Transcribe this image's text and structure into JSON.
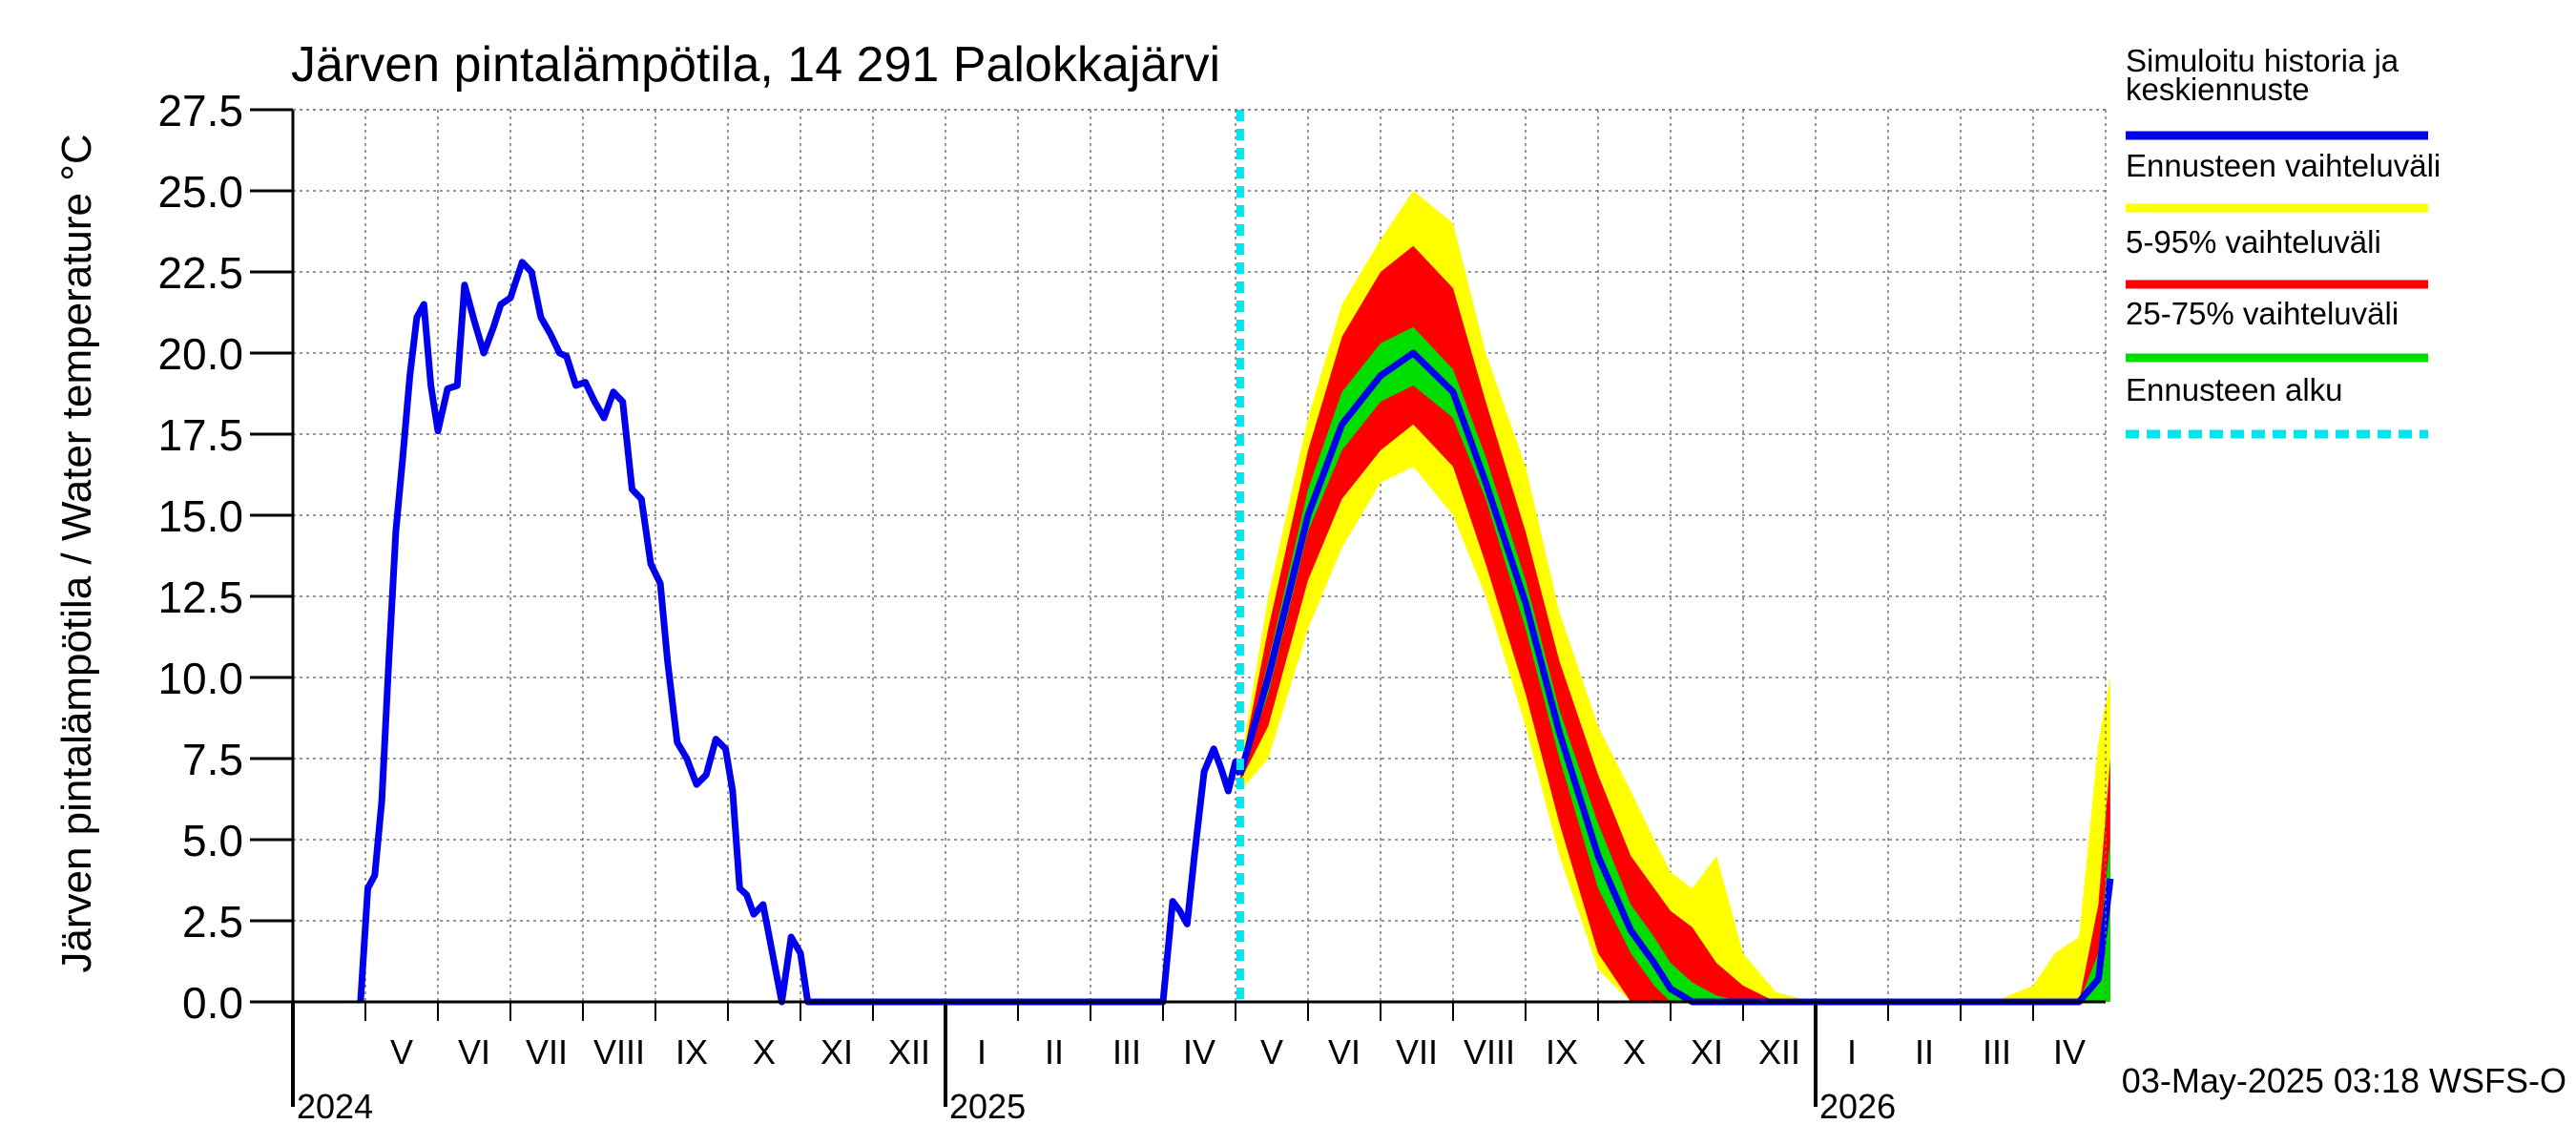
{
  "chart_data": {
    "type": "area",
    "title": "Järven pintalämpötila, 14 291 Palokkajärvi",
    "ylabel": "Järven pintalämpötila / Water temperature °C",
    "xlabel": "",
    "ylim": [
      0,
      27.5
    ],
    "yticks": [
      "0.0",
      "2.5",
      "5.0",
      "7.5",
      "10.0",
      "12.5",
      "15.0",
      "17.5",
      "20.0",
      "22.5",
      "25.0",
      "27.5"
    ],
    "x_axis": {
      "unit": "months",
      "start": "2024-04-01",
      "months": [
        "V",
        "VI",
        "VII",
        "VIII",
        "IX",
        "X",
        "XI",
        "XII",
        "I",
        "II",
        "III",
        "IV",
        "V",
        "VI",
        "VII",
        "VIII",
        "IX",
        "X",
        "XI",
        "XII",
        "I",
        "II",
        "III",
        "IV"
      ],
      "years": [
        "2024",
        "2025",
        "2026"
      ]
    },
    "grid": true,
    "legend_position": "right",
    "legend": [
      {
        "label": "Simuloitu historia ja keskiennuste",
        "color": "#0000ee",
        "style": "solid"
      },
      {
        "label": "Ennusteen vaihteluväli",
        "color": "#ffff00",
        "style": "solid"
      },
      {
        "label": "5-95% vaihteluväli",
        "color": "#ff0000",
        "style": "solid"
      },
      {
        "label": "25-75% vaihteluväli",
        "color": "#00dd00",
        "style": "solid"
      },
      {
        "label": "Ennusteen alku",
        "color": "#00e5ee",
        "style": "dashed"
      }
    ],
    "forecast_start": "2025-05-03",
    "history": {
      "name": "Simuloitu historia",
      "x": [
        "2024-04-29",
        "2024-05-02",
        "2024-05-05",
        "2024-05-08",
        "2024-05-11",
        "2024-05-14",
        "2024-05-17",
        "2024-05-20",
        "2024-05-23",
        "2024-05-26",
        "2024-05-29",
        "2024-06-01",
        "2024-06-05",
        "2024-06-09",
        "2024-06-12",
        "2024-06-16",
        "2024-06-20",
        "2024-06-24",
        "2024-06-27",
        "2024-07-01",
        "2024-07-06",
        "2024-07-10",
        "2024-07-14",
        "2024-07-18",
        "2024-07-22",
        "2024-07-25",
        "2024-07-29",
        "2024-08-02",
        "2024-08-06",
        "2024-08-10",
        "2024-08-14",
        "2024-08-18",
        "2024-08-22",
        "2024-08-26",
        "2024-08-30",
        "2024-09-03",
        "2024-09-06",
        "2024-09-10",
        "2024-09-14",
        "2024-09-18",
        "2024-09-22",
        "2024-09-26",
        "2024-09-30",
        "2024-10-03",
        "2024-10-06",
        "2024-10-09",
        "2024-10-12",
        "2024-10-16",
        "2024-10-20",
        "2024-10-24",
        "2024-10-28",
        "2024-11-01",
        "2024-11-04",
        "2024-11-07",
        "2024-11-10",
        "2024-11-13",
        "2024-11-16",
        "2024-11-19",
        "2024-11-22",
        "2024-11-25",
        "2024-11-28",
        "2024-12-01",
        "2024-12-05",
        "2024-12-10",
        "2024-12-15",
        "2024-12-20",
        "2024-12-24",
        "2024-12-28",
        "2025-01-05",
        "2025-02-01",
        "2025-03-01",
        "2025-04-01",
        "2025-04-05",
        "2025-04-08",
        "2025-04-11",
        "2025-04-14",
        "2025-04-18",
        "2025-04-22",
        "2025-04-25",
        "2025-04-28",
        "2025-05-01",
        "2025-05-03"
      ],
      "y": [
        0.0,
        3.5,
        3.9,
        6.2,
        10.5,
        14.5,
        16.8,
        19.3,
        21.1,
        21.5,
        19.0,
        17.6,
        18.9,
        19.0,
        22.1,
        21.0,
        20.0,
        20.8,
        21.5,
        21.7,
        22.8,
        22.5,
        21.1,
        20.6,
        20.0,
        19.9,
        19.0,
        19.1,
        18.5,
        18.0,
        18.8,
        18.5,
        15.8,
        15.5,
        13.5,
        12.9,
        10.5,
        8.0,
        7.5,
        6.7,
        7.0,
        8.1,
        7.8,
        6.5,
        3.5,
        3.3,
        2.7,
        3.0,
        1.5,
        0.0,
        2.0,
        1.5,
        0.0,
        0.0,
        0.0,
        0.0,
        0.0,
        0.0,
        0.0,
        0.0,
        0.0,
        0.0,
        0.0,
        0.0,
        0.0,
        0.0,
        0.0,
        0.0,
        0.0,
        0.0,
        0.0,
        0.0,
        3.1,
        2.8,
        2.4,
        4.5,
        7.1,
        7.8,
        7.2,
        6.5,
        7.4,
        7.0
      ]
    },
    "forecast": {
      "x": [
        "2025-05-03",
        "2025-05-15",
        "2025-06-01",
        "2025-06-15",
        "2025-07-01",
        "2025-07-15",
        "2025-08-01",
        "2025-08-15",
        "2025-09-01",
        "2025-09-15",
        "2025-10-01",
        "2025-10-15",
        "2025-10-25",
        "2025-11-01",
        "2025-11-10",
        "2025-11-20",
        "2025-12-01",
        "2025-12-15",
        "2025-12-31",
        "2026-01-15",
        "2026-02-15",
        "2026-03-15",
        "2026-04-01",
        "2026-04-10",
        "2026-04-20",
        "2026-04-28",
        "2026-05-03"
      ],
      "series": [
        {
          "name": "Ennusteen vaihteluväli",
          "band": "outer",
          "low": [
            6.5,
            7.5,
            11.5,
            14.0,
            16.0,
            16.5,
            15.0,
            12.5,
            8.5,
            4.5,
            1.0,
            0.0,
            0.0,
            0.0,
            0.0,
            0.0,
            0.0,
            0.0,
            0.0,
            0.0,
            0.0,
            0.0,
            0.0,
            0.0,
            0.0,
            0.0,
            0.0
          ],
          "high": [
            7.3,
            12.5,
            18.0,
            21.5,
            23.5,
            25.0,
            24.0,
            20.0,
            16.5,
            12.0,
            8.5,
            6.5,
            5.0,
            4.0,
            3.5,
            4.5,
            1.5,
            0.3,
            0.0,
            0.0,
            0.0,
            0.0,
            0.5,
            1.5,
            2.0,
            8.0,
            10.0
          ]
        },
        {
          "name": "5-95% vaihteluväli",
          "band": "p5_95",
          "low": [
            6.8,
            8.5,
            13.0,
            15.5,
            17.0,
            17.8,
            16.5,
            13.5,
            9.5,
            5.5,
            1.5,
            0.0,
            0.0,
            0.0,
            0.0,
            0.0,
            0.0,
            0.0,
            0.0,
            0.0,
            0.0,
            0.0,
            0.0,
            0.0,
            0.0,
            0.0,
            0.0
          ],
          "high": [
            7.1,
            11.5,
            17.0,
            20.5,
            22.5,
            23.3,
            22.0,
            18.5,
            14.5,
            10.5,
            7.0,
            4.5,
            3.5,
            2.8,
            2.3,
            1.2,
            0.5,
            0.0,
            0.0,
            0.0,
            0.0,
            0.0,
            0.0,
            0.0,
            0.0,
            3.0,
            7.5
          ]
        },
        {
          "name": "25-75% vaihteluväli",
          "band": "p25_75",
          "low": [
            6.9,
            9.5,
            14.5,
            17.0,
            18.5,
            19.0,
            18.0,
            15.5,
            11.5,
            7.5,
            3.5,
            1.5,
            0.5,
            0.0,
            0.0,
            0.0,
            0.0,
            0.0,
            0.0,
            0.0,
            0.0,
            0.0,
            0.0,
            0.0,
            0.0,
            0.0,
            0.0
          ],
          "high": [
            7.0,
            10.5,
            15.8,
            18.8,
            20.3,
            20.8,
            19.5,
            16.8,
            13.0,
            9.0,
            5.5,
            3.0,
            2.0,
            1.2,
            0.6,
            0.2,
            0.0,
            0.0,
            0.0,
            0.0,
            0.0,
            0.0,
            0.0,
            0.0,
            0.0,
            1.5,
            5.0
          ]
        },
        {
          "name": "Keskiennuste",
          "band": "median",
          "values": [
            7.0,
            10.0,
            15.0,
            17.8,
            19.3,
            20.0,
            18.8,
            16.0,
            12.3,
            8.3,
            4.5,
            2.2,
            1.2,
            0.4,
            0.0,
            0.0,
            0.0,
            0.0,
            0.0,
            0.0,
            0.0,
            0.0,
            0.0,
            0.0,
            0.0,
            0.7,
            3.8
          ]
        }
      ]
    },
    "footer": "03-May-2025 03:18 WSFS-O"
  }
}
